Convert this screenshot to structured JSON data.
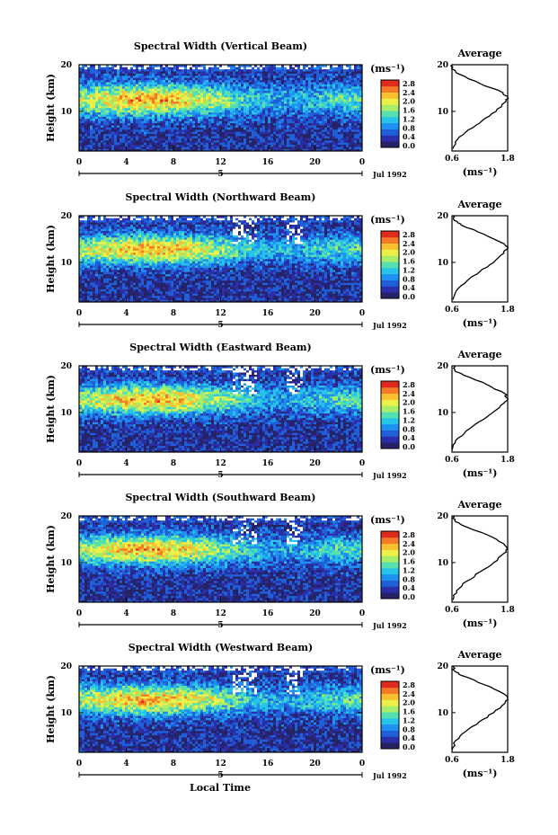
{
  "figure": {
    "xlabel_bottom": "Local Time",
    "ylabel": "Height (km)",
    "unit_label": "(ms⁻¹)",
    "date_label": "Jul 1992",
    "day_marker": "5",
    "average_title": "Average",
    "average_xlabel": "(ms⁻¹)"
  },
  "chart_data": [
    {
      "type": "heatmap",
      "title": "Spectral Width (Vertical Beam)",
      "x_ticks": [
        "0",
        "4",
        "8",
        "12",
        "16",
        "20",
        "0"
      ],
      "y_ticks": [
        "20",
        "10"
      ],
      "xlim": [
        0,
        24
      ],
      "ylim": [
        1.5,
        20
      ],
      "colorbar_ticks": [
        "2.8",
        "2.4",
        "2.0",
        "1.6",
        "1.2",
        "0.8",
        "0.4",
        "0.0"
      ],
      "colorbar_range": [
        0,
        3.0
      ],
      "peak_height_km": 12.5,
      "peak_width": 2.2,
      "profile": {
        "title": "Average",
        "x_ticks": [
          "0.6",
          "1.8"
        ],
        "xlim": [
          0.6,
          1.8
        ],
        "y_ticks": [
          "20",
          "10"
        ],
        "ylim": [
          1.5,
          20
        ],
        "heights": [
          2,
          4,
          6,
          8,
          10,
          12,
          13,
          14,
          16,
          18,
          19,
          20
        ],
        "values": [
          0.62,
          0.72,
          0.95,
          1.25,
          1.55,
          1.75,
          1.8,
          1.7,
          1.2,
          0.75,
          0.62,
          0.6
        ]
      }
    },
    {
      "type": "heatmap",
      "title": "Spectral Width (Northward Beam)",
      "x_ticks": [
        "0",
        "4",
        "8",
        "12",
        "16",
        "20",
        "0"
      ],
      "y_ticks": [
        "20",
        "10"
      ],
      "xlim": [
        0,
        24
      ],
      "ylim": [
        1.5,
        20
      ],
      "colorbar_ticks": [
        "2.8",
        "2.4",
        "2.0",
        "1.6",
        "1.2",
        "0.8",
        "0.4",
        "0.0"
      ],
      "colorbar_range": [
        0,
        3.0
      ],
      "peak_height_km": 12.8,
      "peak_width": 2.0,
      "profile": {
        "title": "Average",
        "x_ticks": [
          "0.6",
          "1.8"
        ],
        "xlim": [
          0.6,
          1.8
        ],
        "y_ticks": [
          "20",
          "10"
        ],
        "ylim": [
          1.5,
          20
        ],
        "heights": [
          2,
          4,
          6,
          8,
          10,
          12,
          13,
          14,
          16,
          18,
          19,
          20
        ],
        "values": [
          0.62,
          0.7,
          0.92,
          1.2,
          1.5,
          1.72,
          1.8,
          1.72,
          1.3,
          0.8,
          0.65,
          0.62
        ]
      }
    },
    {
      "type": "heatmap",
      "title": "Spectral Width (Eastward Beam)",
      "x_ticks": [
        "0",
        "4",
        "8",
        "12",
        "16",
        "20",
        "0"
      ],
      "y_ticks": [
        "20",
        "10"
      ],
      "xlim": [
        0,
        24
      ],
      "ylim": [
        1.5,
        20
      ],
      "colorbar_ticks": [
        "2.8",
        "2.4",
        "2.0",
        "1.6",
        "1.2",
        "0.8",
        "0.4",
        "0.0"
      ],
      "colorbar_range": [
        0,
        3.0
      ],
      "peak_height_km": 12.8,
      "peak_width": 2.0,
      "profile": {
        "title": "Average",
        "x_ticks": [
          "0.6",
          "1.8"
        ],
        "xlim": [
          0.6,
          1.8
        ],
        "y_ticks": [
          "20",
          "10"
        ],
        "ylim": [
          1.5,
          20
        ],
        "heights": [
          2,
          4,
          6,
          8,
          10,
          12,
          13,
          14,
          16,
          18,
          19,
          20
        ],
        "values": [
          0.6,
          0.68,
          0.9,
          1.18,
          1.48,
          1.72,
          1.8,
          1.74,
          1.35,
          0.85,
          0.66,
          0.64
        ]
      }
    },
    {
      "type": "heatmap",
      "title": "Spectral Width (Southward Beam)",
      "x_ticks": [
        "0",
        "4",
        "8",
        "12",
        "16",
        "20",
        "0"
      ],
      "y_ticks": [
        "20",
        "10"
      ],
      "xlim": [
        0,
        24
      ],
      "ylim": [
        1.5,
        20
      ],
      "colorbar_ticks": [
        "2.8",
        "2.4",
        "2.0",
        "1.6",
        "1.2",
        "0.8",
        "0.4",
        "0.0"
      ],
      "colorbar_range": [
        0,
        3.0
      ],
      "peak_height_km": 12.8,
      "peak_width": 2.0,
      "profile": {
        "title": "Average",
        "x_ticks": [
          "0.6",
          "1.8"
        ],
        "xlim": [
          0.6,
          1.8
        ],
        "y_ticks": [
          "20",
          "10"
        ],
        "ylim": [
          1.5,
          20
        ],
        "heights": [
          2,
          4,
          6,
          8,
          10,
          12,
          13,
          14,
          16,
          18,
          19,
          20
        ],
        "values": [
          0.62,
          0.7,
          0.92,
          1.2,
          1.5,
          1.72,
          1.8,
          1.72,
          1.35,
          0.82,
          0.66,
          0.63
        ]
      }
    },
    {
      "type": "heatmap",
      "title": "Spectral Width (Westward Beam)",
      "x_ticks": [
        "0",
        "4",
        "8",
        "12",
        "16",
        "20",
        "0"
      ],
      "y_ticks": [
        "20",
        "10"
      ],
      "xlim": [
        0,
        24
      ],
      "ylim": [
        1.5,
        20
      ],
      "colorbar_ticks": [
        "2.8",
        "2.4",
        "2.0",
        "1.6",
        "1.2",
        "0.8",
        "0.4",
        "0.0"
      ],
      "colorbar_range": [
        0,
        3.0
      ],
      "peak_height_km": 12.8,
      "peak_width": 2.0,
      "profile": {
        "title": "Average",
        "x_ticks": [
          "0.6",
          "1.8"
        ],
        "xlim": [
          0.6,
          1.8
        ],
        "y_ticks": [
          "20",
          "10"
        ],
        "ylim": [
          1.5,
          20
        ],
        "heights": [
          2,
          4,
          6,
          8,
          10,
          12,
          13,
          14,
          16,
          18,
          19,
          20
        ],
        "values": [
          0.6,
          0.68,
          0.9,
          1.18,
          1.5,
          1.74,
          1.8,
          1.72,
          1.3,
          0.8,
          0.65,
          0.63
        ]
      }
    }
  ],
  "colormap": [
    "#262266",
    "#2a2ea8",
    "#1f5fd8",
    "#1e90f0",
    "#25c4e8",
    "#56e0b0",
    "#a6ee6a",
    "#eef048",
    "#f8c030",
    "#f47a28",
    "#e02a1e"
  ]
}
